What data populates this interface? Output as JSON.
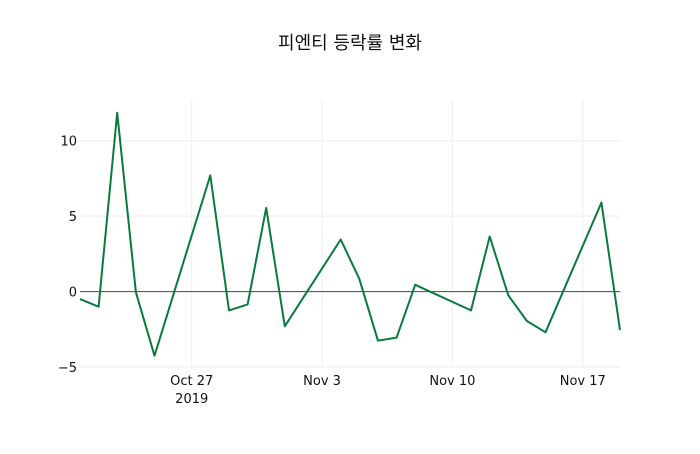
{
  "chart_data": {
    "type": "line",
    "title": "피엔티 등락률 변화",
    "xlabel": "",
    "ylabel": "",
    "x": [
      "2019-10-21",
      "2019-10-22",
      "2019-10-23",
      "2019-10-24",
      "2019-10-25",
      "2019-10-28",
      "2019-10-29",
      "2019-10-30",
      "2019-10-31",
      "2019-11-01",
      "2019-11-04",
      "2019-11-05",
      "2019-11-06",
      "2019-11-07",
      "2019-11-08",
      "2019-11-11",
      "2019-11-12",
      "2019-11-13",
      "2019-11-14",
      "2019-11-15",
      "2019-11-18",
      "2019-11-19"
    ],
    "series": [
      {
        "name": "등락률",
        "color": "#0a7a3c",
        "values": [
          -0.5,
          -1.0,
          11.85,
          -0.05,
          -4.25,
          7.7,
          -1.25,
          -0.85,
          5.55,
          -2.3,
          3.45,
          0.85,
          -3.25,
          -3.05,
          0.45,
          -1.25,
          3.65,
          -0.25,
          -1.95,
          -2.7,
          5.9,
          -2.55
        ]
      }
    ],
    "xrange": [
      "2019-10-21",
      "2019-11-19"
    ],
    "ylim": [
      -5,
      12.7
    ],
    "yticks": [
      -5,
      0,
      5,
      10
    ],
    "ytick_labels": [
      "−5",
      "0",
      "5",
      "10"
    ],
    "xticks": [
      "2019-10-27",
      "2019-11-03",
      "2019-11-10",
      "2019-11-17"
    ],
    "xtick_labels": [
      "Oct 27",
      "Nov 3",
      "Nov 10",
      "Nov 17"
    ],
    "xtick_sublabel": "2019",
    "grid": true,
    "legend": "none"
  }
}
